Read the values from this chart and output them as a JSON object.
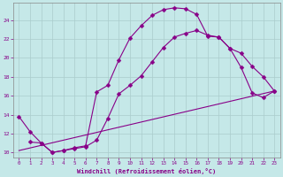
{
  "xlabel": "Windchill (Refroidissement éolien,°C)",
  "bg_color": "#c5e8e8",
  "line_color": "#880088",
  "xlim": [
    -0.5,
    23.5
  ],
  "ylim": [
    9.5,
    25.8
  ],
  "xticks": [
    0,
    1,
    2,
    3,
    4,
    5,
    6,
    7,
    8,
    9,
    10,
    11,
    12,
    13,
    14,
    15,
    16,
    17,
    18,
    19,
    20,
    21,
    22,
    23
  ],
  "yticks": [
    10,
    12,
    14,
    16,
    18,
    20,
    22,
    24
  ],
  "line1_x": [
    0,
    1,
    2,
    3,
    4,
    5,
    6,
    7,
    8,
    9,
    10,
    11,
    12,
    13,
    14,
    15,
    16,
    17,
    18,
    19,
    20,
    21,
    22,
    23
  ],
  "line1_y": [
    13.8,
    12.2,
    11.0,
    10.0,
    10.2,
    10.5,
    10.7,
    16.4,
    17.1,
    19.8,
    22.1,
    23.4,
    24.5,
    25.1,
    25.3,
    25.2,
    24.6,
    22.3,
    22.2,
    21.0,
    20.5,
    19.1,
    18.0,
    16.5
  ],
  "line2_x": [
    1,
    2,
    3,
    4,
    5,
    6,
    7,
    8,
    9,
    10,
    11,
    12,
    13,
    14,
    15,
    16,
    17,
    18,
    19,
    20,
    21,
    22,
    23
  ],
  "line2_y": [
    11.1,
    11.0,
    10.0,
    10.2,
    10.4,
    10.6,
    11.3,
    13.6,
    16.2,
    17.1,
    18.1,
    19.6,
    21.1,
    22.2,
    22.6,
    22.9,
    22.4,
    22.2,
    21.0,
    19.0,
    16.3,
    15.8,
    16.5
  ],
  "line3_x": [
    0,
    23
  ],
  "line3_y": [
    10.2,
    16.5
  ],
  "grid_color": "#aacccc",
  "marker": "D",
  "markersize": 2.5,
  "linewidth": 0.8
}
